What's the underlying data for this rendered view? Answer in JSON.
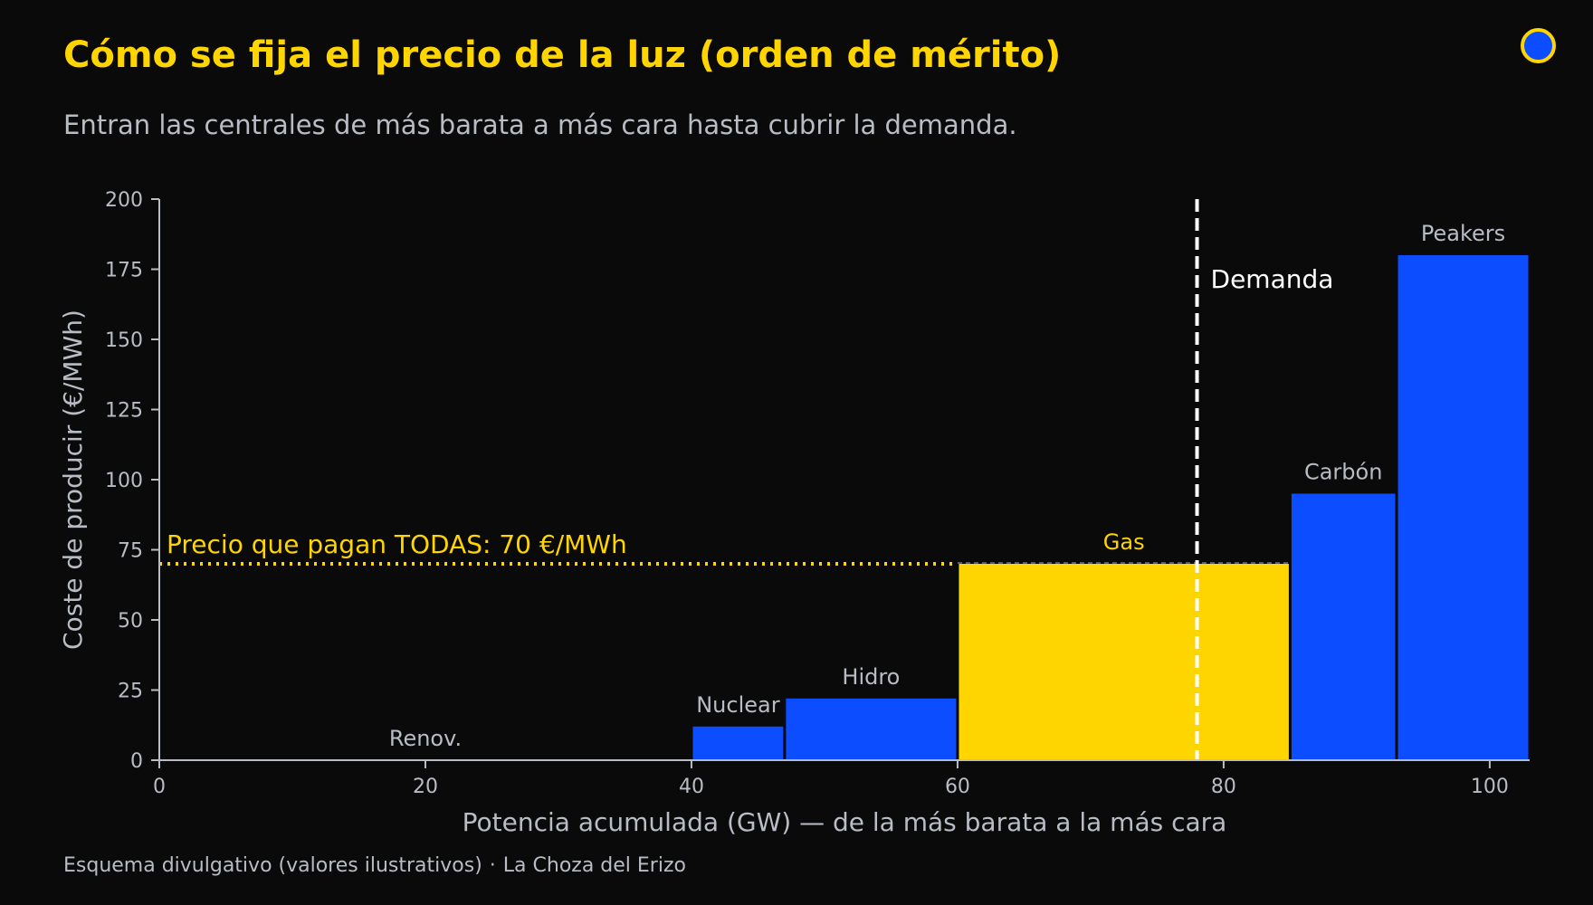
{
  "header": {
    "title": "Cómo se fija el precio de la luz (orden de mérito)",
    "subtitle": "Entran las centrales de más barata a más cara hasta cubrir la demanda."
  },
  "footer": {
    "note": "Esquema divulgativo (valores ilustrativos)",
    "separator": "·",
    "brand": "La Choza del Erizo"
  },
  "colors": {
    "background": "#0a0a0a",
    "accent_yellow": "#ffd500",
    "bar_blue": "#0b4dff",
    "text_gray": "#b8bcc4",
    "demand_white": "#ffffff"
  },
  "chart_data": {
    "type": "bar",
    "xlabel": "Potencia acumulada (GW) — de la más barata a la más cara",
    "ylabel": "Coste de producir (€/MWh)",
    "xlim": [
      0,
      103
    ],
    "ylim": [
      0,
      200
    ],
    "xticks": [
      0,
      20,
      40,
      60,
      80,
      100
    ],
    "yticks": [
      0,
      25,
      50,
      75,
      100,
      125,
      150,
      175,
      200
    ],
    "grid": false,
    "series": [
      {
        "label": "Renov.",
        "x_start": 0,
        "x_end": 40,
        "cost": 0,
        "color": "#0b4dff"
      },
      {
        "label": "Nuclear",
        "x_start": 40,
        "x_end": 47,
        "cost": 12,
        "color": "#0b4dff"
      },
      {
        "label": "Hidro",
        "x_start": 47,
        "x_end": 60,
        "cost": 22,
        "color": "#0b4dff"
      },
      {
        "label": "Gas",
        "x_start": 60,
        "x_end": 85,
        "cost": 70,
        "color": "#ffd500",
        "marginal": true
      },
      {
        "label": "Carbón",
        "x_start": 85,
        "x_end": 93,
        "cost": 95,
        "color": "#0b4dff"
      },
      {
        "label": "Peakers",
        "x_start": 93,
        "x_end": 103,
        "cost": 180,
        "color": "#0b4dff"
      }
    ],
    "price_line": {
      "value": 70,
      "label": "Precio que pagan TODAS: 70 €/MWh"
    },
    "demand_line": {
      "x": 78,
      "label": "Demanda"
    }
  }
}
